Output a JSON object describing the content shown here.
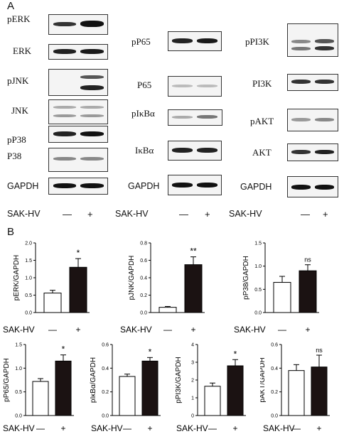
{
  "panel_a": {
    "letter": "A",
    "blots_col1": [
      "pERK",
      "ERK",
      "pJNK",
      "JNK",
      "pP38",
      "P38",
      "GAPDH"
    ],
    "blots_col2": [
      "pP65",
      "P65",
      "pIκBα",
      "IκBα",
      "GAPDH"
    ],
    "blots_col3": [
      "pPI3K",
      "PI3K",
      "pAKT",
      "AKT",
      "GAPDH"
    ],
    "treatment_label": "SAK-HV",
    "minus": "—",
    "plus": "+"
  },
  "panel_b": {
    "letter": "B"
  },
  "chart_data": [
    {
      "type": "bar",
      "categories": [
        "—",
        "+"
      ],
      "values": [
        0.56,
        1.3
      ],
      "errors": [
        0.08,
        0.25
      ],
      "ylabel": "pERK/GAPDH",
      "xlabel": "SAK-HV",
      "ylim": [
        0,
        2.0
      ],
      "yticks": [
        "0.0",
        "0.5",
        "1.0",
        "1.5",
        "2.0"
      ],
      "significance": "*"
    },
    {
      "type": "bar",
      "categories": [
        "—",
        "+"
      ],
      "values": [
        0.06,
        0.55
      ],
      "errors": [
        0.01,
        0.09
      ],
      "ylabel": "pJNK/GAPDH",
      "xlabel": "SAK-HV",
      "ylim": [
        0,
        0.8
      ],
      "yticks": [
        "0.0",
        "0.2",
        "0.4",
        "0.6",
        "0.8"
      ],
      "significance": "**"
    },
    {
      "type": "bar",
      "categories": [
        "—",
        "+"
      ],
      "values": [
        0.65,
        0.9
      ],
      "errors": [
        0.13,
        0.13
      ],
      "ylabel": "pP38/GAPDH",
      "xlabel": "SAK-HV",
      "ylim": [
        0,
        1.5
      ],
      "yticks": [
        "0.0",
        "0.5",
        "1.0",
        "1.5"
      ],
      "significance": "ns"
    },
    {
      "type": "bar",
      "categories": [
        "—",
        "+"
      ],
      "values": [
        0.72,
        1.15
      ],
      "errors": [
        0.06,
        0.13
      ],
      "ylabel": "pP65/GAPDH",
      "xlabel": "SAK-HV",
      "ylim": [
        0,
        1.5
      ],
      "yticks": [
        "0.0",
        "0.5",
        "1.0",
        "1.5"
      ],
      "significance": "*"
    },
    {
      "type": "bar",
      "categories": [
        "—",
        "+"
      ],
      "values": [
        0.33,
        0.46
      ],
      "errors": [
        0.02,
        0.03
      ],
      "ylabel": "pIκBα/GAPDH",
      "xlabel": "SAK-HV",
      "ylim": [
        0,
        0.6
      ],
      "yticks": [
        "0.0",
        "0.2",
        "0.4",
        "0.6"
      ],
      "significance": "*"
    },
    {
      "type": "bar",
      "categories": [
        "—",
        "+"
      ],
      "values": [
        1.65,
        2.8
      ],
      "errors": [
        0.18,
        0.35
      ],
      "ylabel": "pPI3K/GAPDH",
      "xlabel": "SAK-HV",
      "ylim": [
        0,
        4
      ],
      "yticks": [
        "0",
        "1",
        "2",
        "3",
        "4"
      ],
      "significance": "*"
    },
    {
      "type": "bar",
      "categories": [
        "—",
        "+"
      ],
      "values": [
        0.38,
        0.41
      ],
      "errors": [
        0.05,
        0.1
      ],
      "ylabel": "pAKT/GAPDH",
      "xlabel": "SAK-HV",
      "ylim": [
        0,
        0.6
      ],
      "yticks": [
        "0.0",
        "0.2",
        "0.4",
        "0.6"
      ],
      "significance": "ns"
    }
  ]
}
